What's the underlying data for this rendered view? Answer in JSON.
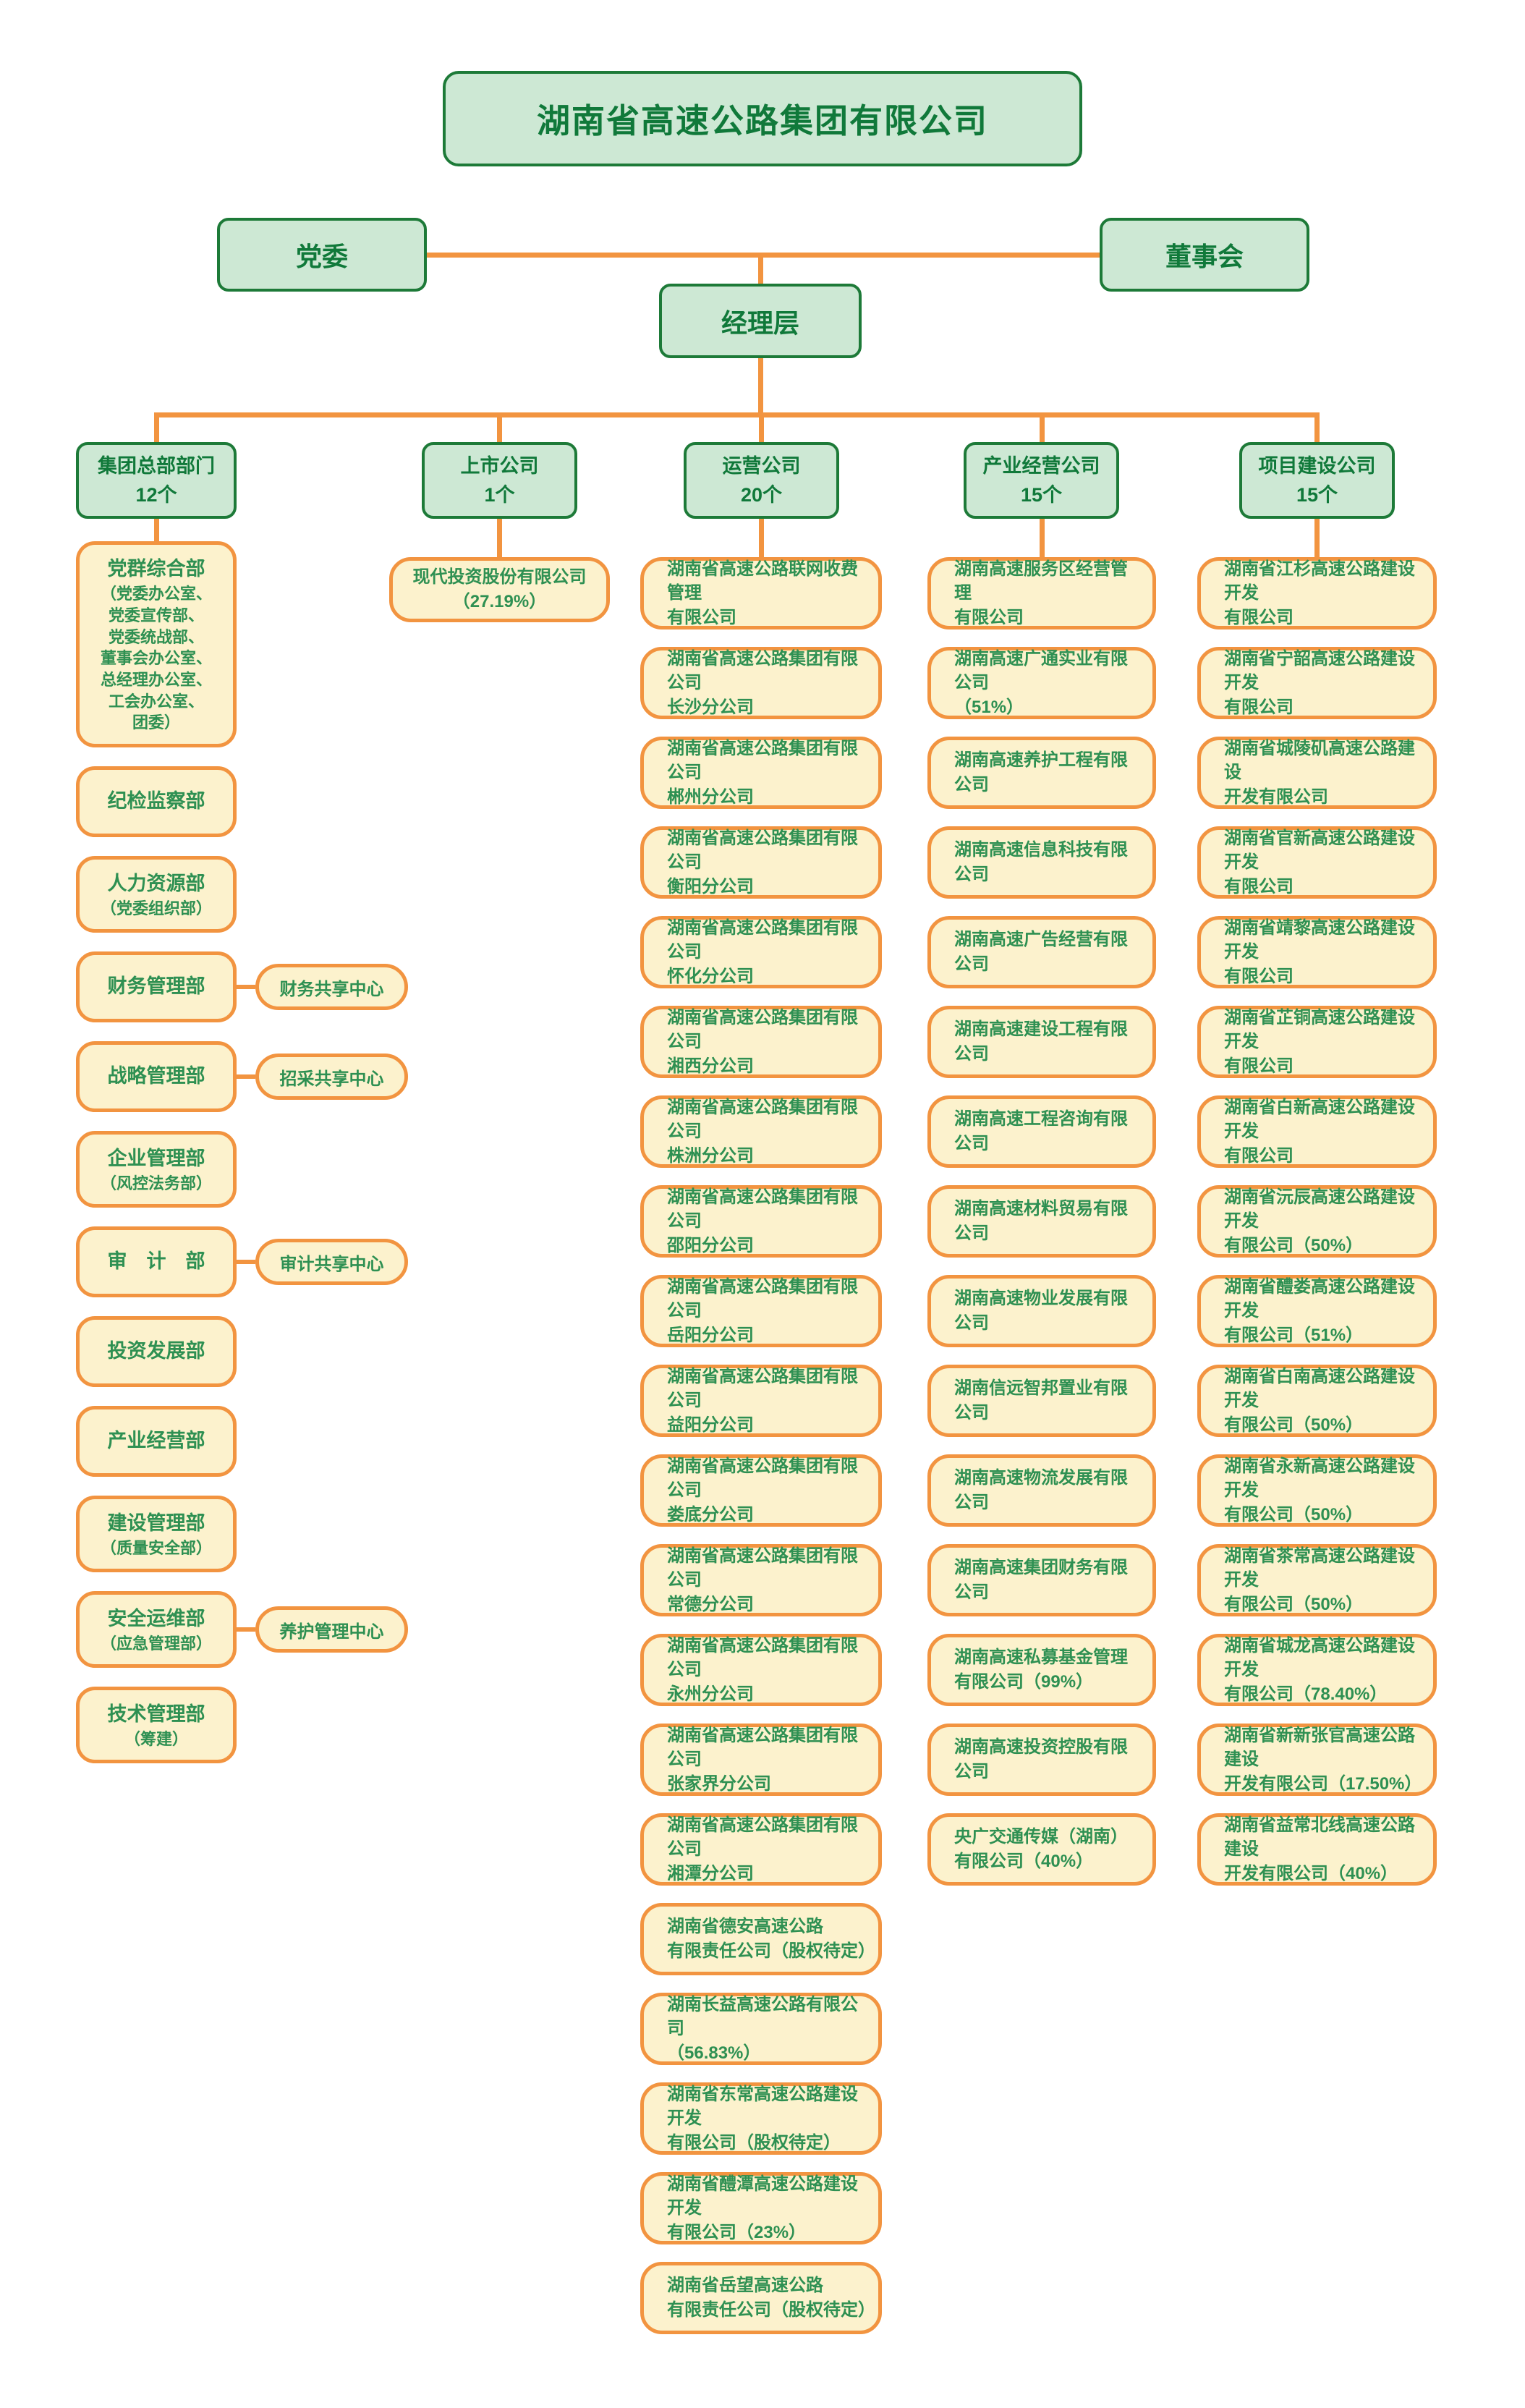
{
  "colors": {
    "green_fill": "#cde8d4",
    "green_border": "#1d7a38",
    "green_text": "#10793a",
    "yellow_fill": "#fcf2cd",
    "orange_border": "#f29440",
    "item_text": "#2e9052",
    "line": "#f29440"
  },
  "root": {
    "title": "湖南省高速公路集团有限公司"
  },
  "governance": {
    "party": "党委",
    "board": "董事会",
    "management": "经理层"
  },
  "columns": [
    {
      "header": "集团总部部门",
      "count_label": "12个",
      "items": [
        {
          "name": "党群综合部",
          "sub": "（党委办公室、\n党委宣传部、\n党委统战部、\n董事会办公室、\n总经理办公室、\n工会办公室、\n团委）"
        },
        {
          "name": "纪检监察部"
        },
        {
          "name": "人力资源部",
          "sub": "（党委组织部）"
        },
        {
          "name": "财务管理部",
          "side": "财务共享中心"
        },
        {
          "name": "战略管理部",
          "side": "招采共享中心"
        },
        {
          "name": "企业管理部",
          "sub": "（风控法务部）"
        },
        {
          "name": "审　计　部",
          "side": "审计共享中心"
        },
        {
          "name": "投资发展部"
        },
        {
          "name": "产业经营部"
        },
        {
          "name": "建设管理部",
          "sub": "（质量安全部）"
        },
        {
          "name": "安全运维部",
          "sub": "（应急管理部）",
          "side": "养护管理中心"
        },
        {
          "name": "技术管理部",
          "sub": "（筹建）"
        }
      ]
    },
    {
      "header": "上市公司",
      "count_label": "1个",
      "items": [
        {
          "name": "现代投资股份有限公司\n（27.19%）"
        }
      ]
    },
    {
      "header": "运营公司",
      "count_label": "20个",
      "items": [
        {
          "name": "湖南省高速公路联网收费管理\n有限公司"
        },
        {
          "name": "湖南省高速公路集团有限公司\n长沙分公司"
        },
        {
          "name": "湖南省高速公路集团有限公司\n郴州分公司"
        },
        {
          "name": "湖南省高速公路集团有限公司\n衡阳分公司"
        },
        {
          "name": "湖南省高速公路集团有限公司\n怀化分公司"
        },
        {
          "name": "湖南省高速公路集团有限公司\n湘西分公司"
        },
        {
          "name": "湖南省高速公路集团有限公司\n株洲分公司"
        },
        {
          "name": "湖南省高速公路集团有限公司\n邵阳分公司"
        },
        {
          "name": "湖南省高速公路集团有限公司\n岳阳分公司"
        },
        {
          "name": "湖南省高速公路集团有限公司\n益阳分公司"
        },
        {
          "name": "湖南省高速公路集团有限公司\n娄底分公司"
        },
        {
          "name": "湖南省高速公路集团有限公司\n常德分公司"
        },
        {
          "name": "湖南省高速公路集团有限公司\n永州分公司"
        },
        {
          "name": "湖南省高速公路集团有限公司\n张家界分公司"
        },
        {
          "name": "湖南省高速公路集团有限公司\n湘潭分公司"
        },
        {
          "name": "湖南省德安高速公路\n有限责任公司（股权待定）"
        },
        {
          "name": "湖南长益高速公路有限公司\n（56.83%）"
        },
        {
          "name": "湖南省东常高速公路建设开发\n有限公司（股权待定）"
        },
        {
          "name": "湖南省醴潭高速公路建设开发\n有限公司（23%）"
        },
        {
          "name": "湖南省岳望高速公路\n有限责任公司（股权待定）"
        }
      ]
    },
    {
      "header": "产业经营公司",
      "count_label": "15个",
      "items": [
        {
          "name": "湖南高速服务区经营管理\n有限公司"
        },
        {
          "name": "湖南高速广通实业有限公司\n（51%）"
        },
        {
          "name": "湖南高速养护工程有限公司"
        },
        {
          "name": "湖南高速信息科技有限公司"
        },
        {
          "name": "湖南高速广告经营有限公司"
        },
        {
          "name": "湖南高速建设工程有限公司"
        },
        {
          "name": "湖南高速工程咨询有限公司"
        },
        {
          "name": "湖南高速材料贸易有限公司"
        },
        {
          "name": "湖南高速物业发展有限公司"
        },
        {
          "name": "湖南信远智邦置业有限公司"
        },
        {
          "name": "湖南高速物流发展有限公司"
        },
        {
          "name": "湖南高速集团财务有限公司"
        },
        {
          "name": "湖南高速私募基金管理\n有限公司（99%）"
        },
        {
          "name": "湖南高速投资控股有限公司"
        },
        {
          "name": "央广交通传媒（湖南）\n有限公司（40%）"
        }
      ]
    },
    {
      "header": "项目建设公司",
      "count_label": "15个",
      "items": [
        {
          "name": "湖南省江杉高速公路建设开发\n有限公司"
        },
        {
          "name": "湖南省宁韶高速公路建设开发\n有限公司"
        },
        {
          "name": "湖南省城陵矶高速公路建设\n开发有限公司"
        },
        {
          "name": "湖南省官新高速公路建设开发\n有限公司"
        },
        {
          "name": "湖南省靖黎高速公路建设开发\n有限公司"
        },
        {
          "name": "湖南省芷铜高速公路建设开发\n有限公司"
        },
        {
          "name": "湖南省白新高速公路建设开发\n有限公司"
        },
        {
          "name": "湖南省沅辰高速公路建设开发\n有限公司（50%）"
        },
        {
          "name": "湖南省醴娄高速公路建设开发\n有限公司（51%）"
        },
        {
          "name": "湖南省白南高速公路建设开发\n有限公司（50%）"
        },
        {
          "name": "湖南省永新高速公路建设开发\n有限公司（50%）"
        },
        {
          "name": "湖南省茶常高速公路建设开发\n有限公司（50%）"
        },
        {
          "name": "湖南省城龙高速公路建设开发\n有限公司（78.40%）"
        },
        {
          "name": "湖南省新新张官高速公路建设\n开发有限公司（17.50%）"
        },
        {
          "name": "湖南省益常北线高速公路建设\n开发有限公司（40%）"
        }
      ]
    }
  ]
}
